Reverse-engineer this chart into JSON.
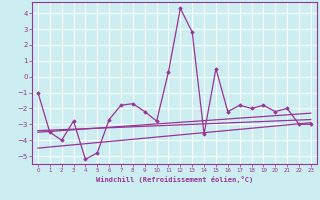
{
  "title": "",
  "xlabel": "Windchill (Refroidissement éolien,°C)",
  "ylabel": "",
  "background_color": "#cceef0",
  "grid_color": "#ffffff",
  "line_color": "#993399",
  "xlim": [
    -0.5,
    23.5
  ],
  "ylim": [
    -5.5,
    4.7
  ],
  "yticks": [
    -5,
    -4,
    -3,
    -2,
    -1,
    0,
    1,
    2,
    3,
    4
  ],
  "xticks": [
    0,
    1,
    2,
    3,
    4,
    5,
    6,
    7,
    8,
    9,
    10,
    11,
    12,
    13,
    14,
    15,
    16,
    17,
    18,
    19,
    20,
    21,
    22,
    23
  ],
  "main_x": [
    0,
    1,
    2,
    3,
    4,
    5,
    6,
    7,
    8,
    9,
    10,
    11,
    12,
    13,
    14,
    15,
    16,
    17,
    18,
    19,
    20,
    21,
    22,
    23
  ],
  "main_y": [
    -1.0,
    -3.5,
    -4.0,
    -2.8,
    -5.2,
    -4.8,
    -2.7,
    -1.8,
    -1.7,
    -2.2,
    -2.8,
    0.3,
    4.3,
    2.8,
    -3.6,
    0.5,
    -2.2,
    -1.8,
    -2.0,
    -1.8,
    -2.2,
    -2.0,
    -3.0,
    -3.0
  ],
  "line1_x": [
    0,
    23
  ],
  "line1_y": [
    -3.4,
    -2.7
  ],
  "line2_x": [
    0,
    23
  ],
  "line2_y": [
    -3.5,
    -2.3
  ],
  "line3_x": [
    0,
    23
  ],
  "line3_y": [
    -4.5,
    -2.9
  ]
}
